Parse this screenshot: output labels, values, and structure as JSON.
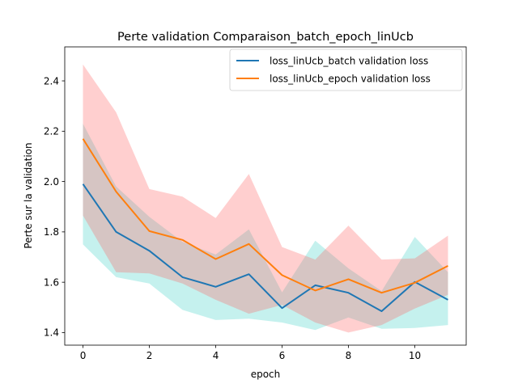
{
  "chart_data": {
    "type": "line",
    "title": "Perte validation Comparaison_batch_epoch_linUcb",
    "xlabel": "epoch",
    "ylabel": "Perte sur la validation",
    "xlim": [
      -0.55,
      11.55
    ],
    "ylim": [
      1.35,
      2.535
    ],
    "xticks": [
      0,
      2,
      4,
      6,
      8,
      10
    ],
    "yticks": [
      1.4,
      1.6,
      1.8,
      2.0,
      2.2,
      2.4
    ],
    "x": [
      0,
      1,
      2,
      3,
      4,
      5,
      6,
      7,
      8,
      9,
      10,
      11
    ],
    "legend_position": "top-right",
    "grid": false,
    "series": [
      {
        "name": "loss_linUcb_batch validation loss",
        "color": "#1f77b4",
        "band_color": "#40d2c8",
        "values": [
          1.99,
          1.8,
          1.725,
          1.62,
          1.582,
          1.632,
          1.497,
          1.588,
          1.558,
          1.485,
          1.601,
          1.53
        ],
        "upper": [
          2.23,
          1.98,
          1.86,
          1.76,
          1.71,
          1.81,
          1.56,
          1.765,
          1.655,
          1.565,
          1.78,
          1.64
        ],
        "lower": [
          1.75,
          1.62,
          1.595,
          1.49,
          1.45,
          1.455,
          1.44,
          1.41,
          1.46,
          1.415,
          1.418,
          1.43
        ]
      },
      {
        "name": "loss_linUcb_epoch validation loss",
        "color": "#ff7f0e",
        "band_color": "#ff6060",
        "values": [
          2.17,
          1.96,
          1.803,
          1.768,
          1.692,
          1.752,
          1.628,
          1.567,
          1.612,
          1.558,
          1.598,
          1.665
        ],
        "upper": [
          2.465,
          2.275,
          1.97,
          1.94,
          1.855,
          2.03,
          1.74,
          1.69,
          1.825,
          1.69,
          1.695,
          1.785
        ],
        "lower": [
          1.865,
          1.64,
          1.635,
          1.595,
          1.53,
          1.475,
          1.51,
          1.44,
          1.4,
          1.43,
          1.495,
          1.55
        ]
      }
    ]
  }
}
